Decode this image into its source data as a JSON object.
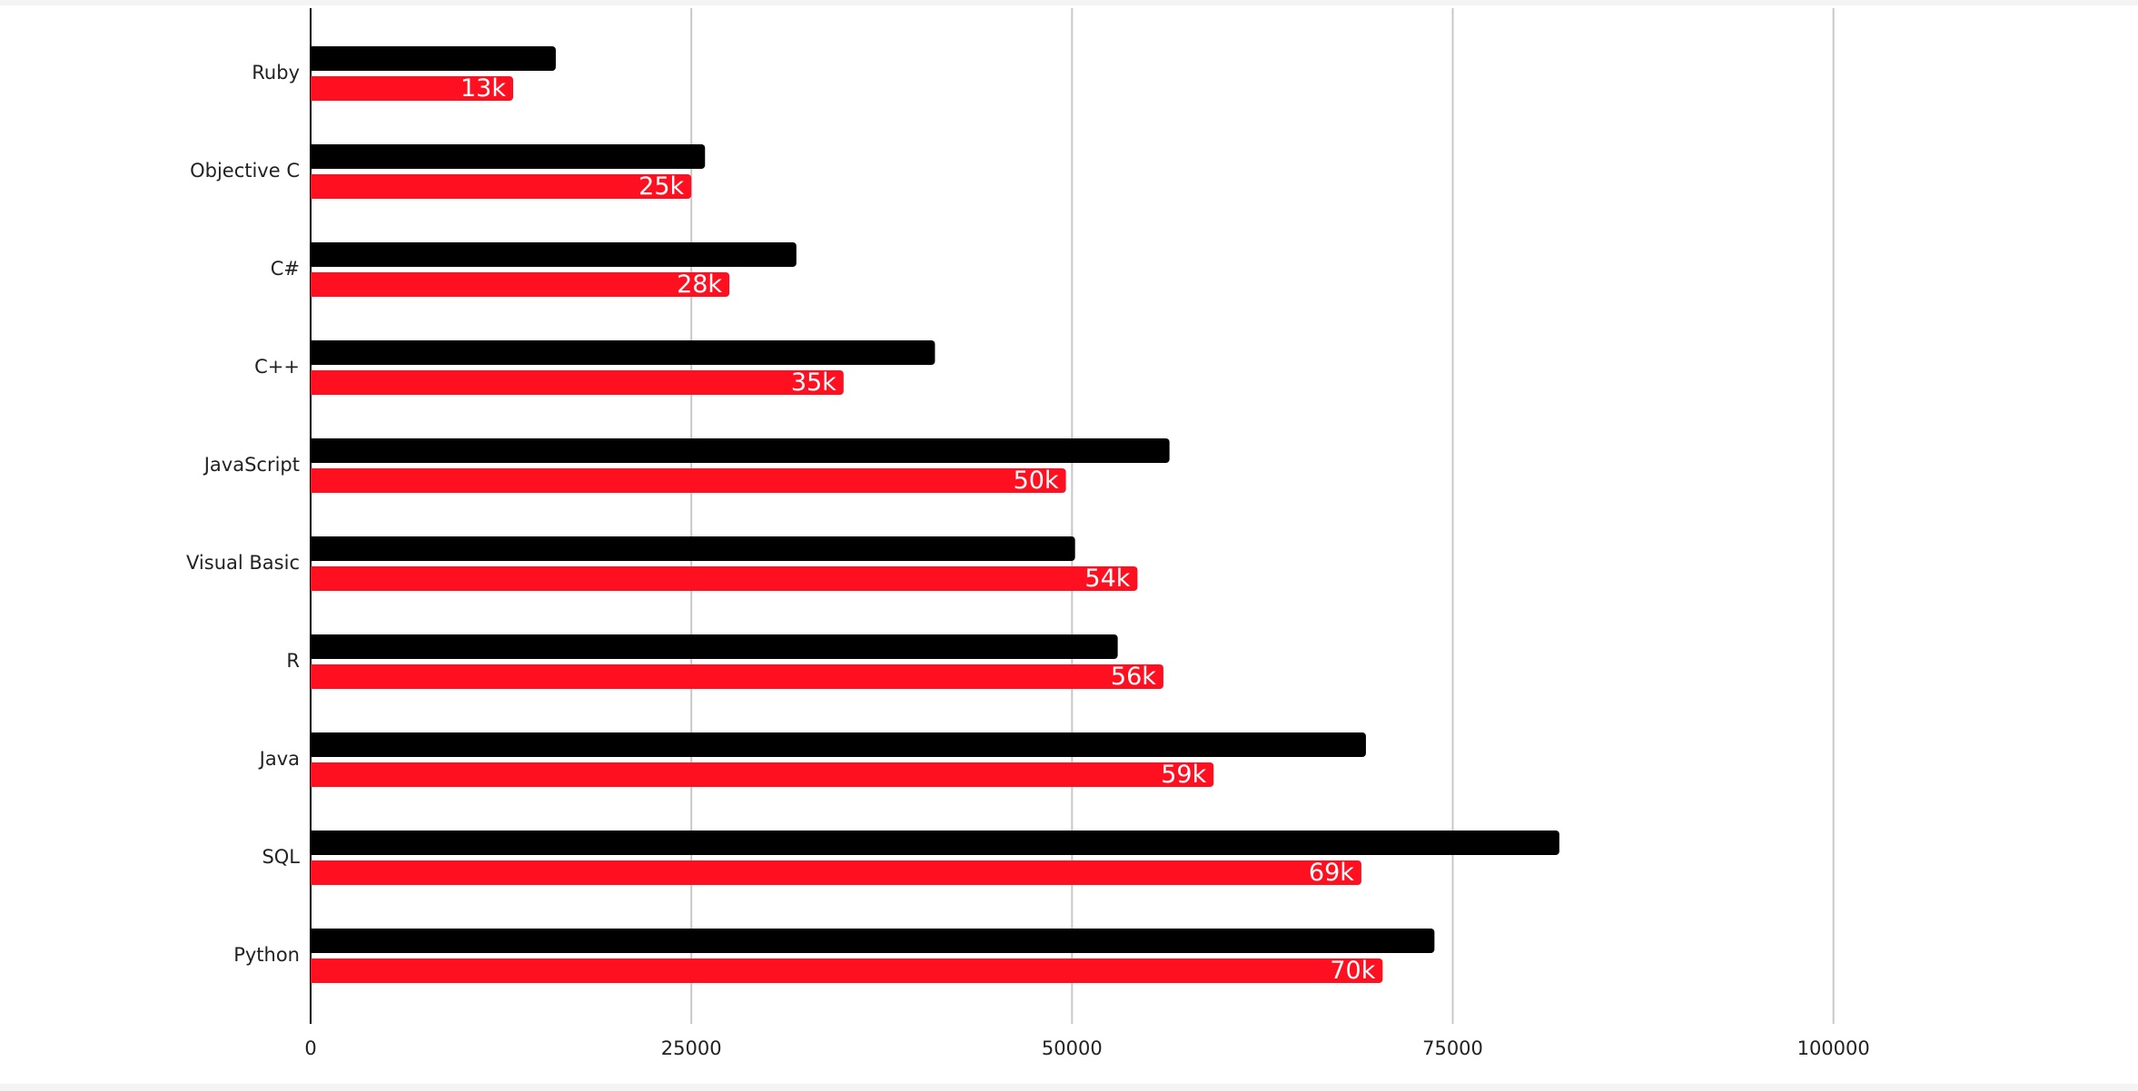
{
  "chart_data": {
    "type": "barh",
    "categories": [
      "Ruby",
      "Objective C",
      "C#",
      "C++",
      "JavaScript",
      "Visual Basic",
      "R",
      "Java",
      "SQL",
      "Python"
    ],
    "series": [
      {
        "color": "#000000",
        "values": [
          16100,
          25900,
          31900,
          41000,
          56400,
          50200,
          53000,
          69300,
          82000,
          73800
        ]
      },
      {
        "color": "#ff1020",
        "values": [
          13300,
          25000,
          27500,
          35000,
          49600,
          54300,
          56000,
          59300,
          69000,
          70400
        ],
        "value_labels": [
          "13k",
          "25k",
          "28k",
          "35k",
          "50k",
          "54k",
          "56k",
          "59k",
          "69k",
          "70k"
        ]
      }
    ],
    "xlim": [
      0,
      120000
    ],
    "xticks": [
      0,
      25000,
      50000,
      75000,
      100000
    ],
    "grid": true
  }
}
